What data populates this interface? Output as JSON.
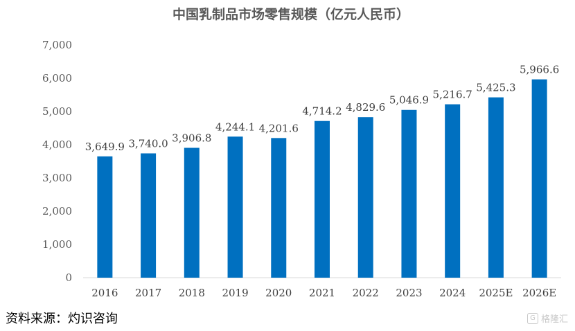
{
  "chart_data": {
    "type": "bar",
    "title": "中国乳制品市场零售规模（亿元人民币）",
    "categories": [
      "2016",
      "2017",
      "2018",
      "2019",
      "2020",
      "2021",
      "2022",
      "2023",
      "2024",
      "2025E",
      "2026E"
    ],
    "values": [
      3649.9,
      3740.0,
      3906.8,
      4244.1,
      4201.6,
      4714.2,
      4829.6,
      5046.9,
      5216.7,
      5425.3,
      5966.6
    ],
    "value_labels": [
      "3,649.9",
      "3,740.0",
      "3,906.8",
      "4,244.1",
      "4,201.6",
      "4,714.2",
      "4,829.6",
      "5,046.9",
      "5,216.7",
      "5,425.3",
      "5,966.6"
    ],
    "yticks": [
      0,
      1000,
      2000,
      3000,
      4000,
      5000,
      6000,
      7000
    ],
    "ytick_labels": [
      "0",
      "1,000",
      "2,000",
      "3,000",
      "4,000",
      "5,000",
      "6,000",
      "7,000"
    ],
    "ylim": [
      0,
      7000
    ],
    "xlabel": "",
    "ylabel": "",
    "bar_color": "#0070C0",
    "grid": false
  },
  "source_text": "资料来源：灼识咨询",
  "watermark": {
    "logo": "G",
    "text": "格隆汇"
  }
}
